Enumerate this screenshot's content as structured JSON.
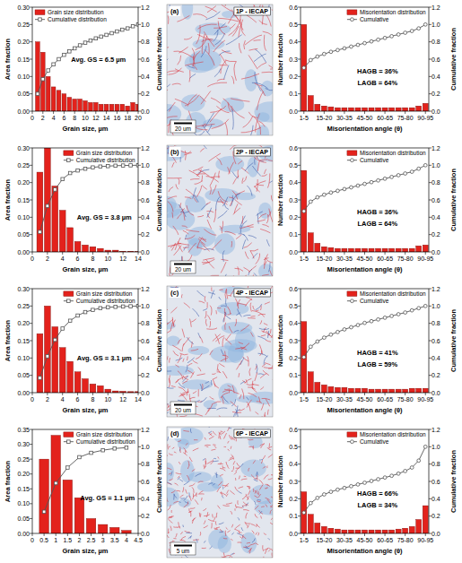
{
  "chart_data": [
    {
      "type": "bar",
      "xlabel": "Grain size, µm",
      "ylabel": "Area fraction",
      "y2label": "Cumulative fraction",
      "x": [
        1,
        2,
        3,
        4,
        5,
        6,
        7,
        8,
        9,
        10,
        11,
        12,
        13,
        14,
        15,
        16,
        17,
        18,
        19,
        20
      ],
      "xlim": [
        0,
        20
      ],
      "xticks": [
        0,
        2,
        4,
        6,
        8,
        10,
        12,
        14,
        16,
        18,
        20
      ],
      "ylim": [
        0,
        0.3
      ],
      "yticks": [
        {
          "value": 0,
          "label": "0.00"
        },
        0.05,
        {
          "value": 0.1,
          "label": "0.10"
        },
        0.15,
        {
          "value": 0.2,
          "label": "0.20"
        },
        0.25,
        {
          "value": 0.3,
          "label": "0.30"
        }
      ],
      "y2lim": [
        0,
        1.2
      ],
      "y2ticks": [
        {
          "value": 0,
          "label": "0.0"
        },
        0.2,
        0.4,
        0.6,
        0.8,
        {
          "value": 1,
          "label": "1.0"
        },
        1.2
      ],
      "series": [
        {
          "name": "Grain size distribution",
          "type": "bar",
          "color": "#e3221c",
          "values": [
            0.2,
            0.17,
            0.1,
            0.07,
            0.06,
            0.05,
            0.04,
            0.035,
            0.035,
            0.03,
            0.025,
            0.025,
            0.02,
            0.02,
            0.02,
            0.02,
            0.02,
            0.015,
            0.025,
            0.02
          ]
        },
        {
          "name": "Cumulative distribution",
          "type": "line",
          "axis": "y2",
          "color": "#555555",
          "marker": "square",
          "values": [
            0.2,
            0.37,
            0.47,
            0.54,
            0.6,
            0.65,
            0.69,
            0.725,
            0.76,
            0.79,
            0.815,
            0.84,
            0.86,
            0.88,
            0.9,
            0.92,
            0.94,
            0.955,
            0.98,
            1.0
          ]
        }
      ],
      "legend": "upper left",
      "annotations": [
        "Avg. GS = 6.5 µm"
      ]
    },
    {
      "type": "image",
      "title": "1P - IECAP",
      "annotations": [
        "(a)",
        "20 um"
      ]
    },
    {
      "type": "bar",
      "xlabel": "Misorientation angle (θ)",
      "ylabel": "Number fraction",
      "y2label": "Cumulative fraction",
      "categories": [
        "1-5",
        null,
        null,
        "15-20",
        null,
        null,
        "30-35",
        null,
        null,
        "45-50",
        null,
        null,
        "60-65",
        null,
        null,
        "75-80",
        null,
        null,
        "90-95"
      ],
      "ylim": [
        0,
        0.6
      ],
      "yticks": [
        {
          "value": 0,
          "label": "0.0"
        },
        0.1,
        0.2,
        0.3,
        0.4,
        0.5,
        0.6
      ],
      "y2lim": [
        0,
        1.2
      ],
      "y2ticks": [
        {
          "value": 0,
          "label": "0.0"
        },
        0.2,
        0.4,
        0.6,
        0.8,
        {
          "value": 1,
          "label": "1.0"
        },
        1.2
      ],
      "series": [
        {
          "name": "Misorientation distribution",
          "type": "bar",
          "color": "#e3221c",
          "values": [
            0.5,
            0.09,
            0.04,
            0.03,
            0.025,
            0.02,
            0.02,
            0.02,
            0.02,
            0.02,
            0.02,
            0.02,
            0.02,
            0.02,
            0.02,
            0.02,
            0.02,
            0.03,
            0.045
          ]
        },
        {
          "name": "Cumulative",
          "type": "line",
          "axis": "y2",
          "color": "#555555",
          "marker": "circle",
          "values": [
            0.5,
            0.59,
            0.63,
            0.66,
            0.685,
            0.705,
            0.725,
            0.745,
            0.765,
            0.785,
            0.805,
            0.825,
            0.845,
            0.865,
            0.885,
            0.905,
            0.925,
            0.955,
            1.0
          ]
        }
      ],
      "legend": "upper right",
      "annotations": [
        "HAGB = 36%",
        "LAGB = 64%"
      ]
    },
    {
      "type": "bar",
      "xlabel": "Grain size, µm",
      "ylabel": "Area fraction",
      "y2label": "Cumulative fraction",
      "x": [
        1,
        2,
        3,
        4,
        5,
        6,
        7,
        8,
        9,
        10,
        11,
        12,
        13,
        14
      ],
      "xlim": [
        0,
        14
      ],
      "xticks": [
        0,
        2,
        4,
        6,
        8,
        10,
        12,
        14
      ],
      "ylim": [
        0,
        0.3
      ],
      "yticks": [
        {
          "value": 0,
          "label": "0.00"
        },
        0.05,
        {
          "value": 0.1,
          "label": "0.10"
        },
        0.15,
        {
          "value": 0.2,
          "label": "0.20"
        },
        0.25,
        {
          "value": 0.3,
          "label": "0.30"
        }
      ],
      "y2lim": [
        0,
        1.2
      ],
      "y2ticks": [
        {
          "value": 0,
          "label": "0.0"
        },
        0.2,
        0.4,
        0.6,
        0.8,
        {
          "value": 1,
          "label": "1.0"
        },
        1.2
      ],
      "series": [
        {
          "name": "Grain size distribution",
          "type": "bar",
          "color": "#e3221c",
          "values": [
            0.23,
            0.3,
            0.19,
            0.12,
            0.07,
            0.03,
            0.02,
            0.015,
            0.01,
            0.005,
            0.005,
            0.002,
            0.002,
            0.001
          ]
        },
        {
          "name": "Cumulative distribution",
          "type": "line",
          "axis": "y2",
          "color": "#555555",
          "marker": "square",
          "values": [
            0.23,
            0.53,
            0.72,
            0.84,
            0.91,
            0.94,
            0.96,
            0.975,
            0.985,
            0.99,
            0.995,
            0.997,
            0.999,
            1.0
          ]
        }
      ],
      "legend": "upper right",
      "annotations": [
        "Avg. GS = 3.8 µm"
      ]
    },
    {
      "type": "image",
      "title": "2P - IECAP",
      "annotations": [
        "(b)",
        "20 um"
      ]
    },
    {
      "type": "bar",
      "xlabel": "Misorientation angle (θ)",
      "ylabel": "Number fraction",
      "y2label": "Cumulative fraction",
      "categories": [
        "1-5",
        null,
        null,
        "15-20",
        null,
        null,
        "30-35",
        null,
        null,
        "45-50",
        null,
        null,
        "60-65",
        null,
        null,
        "75-80",
        null,
        null,
        "90-95"
      ],
      "ylim": [
        0,
        0.6
      ],
      "yticks": [
        {
          "value": 0,
          "label": "0.0"
        },
        0.1,
        0.2,
        0.3,
        0.4,
        0.5,
        0.6
      ],
      "y2lim": [
        0,
        1.2
      ],
      "y2ticks": [
        {
          "value": 0,
          "label": "0.0"
        },
        0.2,
        0.4,
        0.6,
        0.8,
        {
          "value": 1,
          "label": "1.0"
        },
        1.2
      ],
      "series": [
        {
          "name": "Misorientation distribution",
          "type": "bar",
          "color": "#e3221c",
          "values": [
            0.47,
            0.11,
            0.05,
            0.03,
            0.025,
            0.02,
            0.02,
            0.02,
            0.02,
            0.02,
            0.02,
            0.02,
            0.02,
            0.02,
            0.02,
            0.02,
            0.02,
            0.035,
            0.04
          ]
        },
        {
          "name": "Cumulative",
          "type": "line",
          "axis": "y2",
          "color": "#555555",
          "marker": "circle",
          "values": [
            0.47,
            0.58,
            0.63,
            0.66,
            0.685,
            0.705,
            0.725,
            0.745,
            0.765,
            0.785,
            0.805,
            0.825,
            0.845,
            0.865,
            0.885,
            0.905,
            0.925,
            0.96,
            1.0
          ]
        }
      ],
      "legend": "upper right",
      "annotations": [
        "HAGB = 36%",
        "LAGB = 64%"
      ]
    },
    {
      "type": "bar",
      "xlabel": "Grain size, µm",
      "ylabel": "Area fraction",
      "y2label": "Cumulative fraction",
      "x": [
        1,
        2,
        3,
        4,
        5,
        6,
        7,
        8,
        9,
        10,
        11,
        12,
        13,
        14
      ],
      "xlim": [
        0,
        14
      ],
      "xticks": [
        0,
        2,
        4,
        6,
        8,
        10,
        12,
        14
      ],
      "ylim": [
        0,
        0.3
      ],
      "yticks": [
        {
          "value": 0,
          "label": "0.00"
        },
        0.05,
        {
          "value": 0.1,
          "label": "0.10"
        },
        0.15,
        {
          "value": 0.2,
          "label": "0.20"
        },
        0.25,
        {
          "value": 0.3,
          "label": "0.30"
        }
      ],
      "y2lim": [
        0,
        1.2
      ],
      "y2ticks": [
        {
          "value": 0,
          "label": "0.0"
        },
        0.2,
        0.4,
        0.6,
        0.8,
        {
          "value": 1,
          "label": "1.0"
        },
        1.2
      ],
      "series": [
        {
          "name": "Grain size distribution",
          "type": "bar",
          "color": "#e3221c",
          "values": [
            0.17,
            0.25,
            0.19,
            0.13,
            0.09,
            0.06,
            0.04,
            0.025,
            0.02,
            0.01,
            0.005,
            0.004,
            0.003,
            0.003
          ]
        },
        {
          "name": "Cumulative distribution",
          "type": "line",
          "axis": "y2",
          "color": "#555555",
          "marker": "square",
          "values": [
            0.17,
            0.42,
            0.61,
            0.74,
            0.83,
            0.89,
            0.93,
            0.955,
            0.975,
            0.985,
            0.99,
            0.994,
            0.997,
            1.0
          ]
        }
      ],
      "legend": "upper right",
      "annotations": [
        "Avg. GS = 3.1 µm"
      ]
    },
    {
      "type": "image",
      "title": "4P - IECAP",
      "annotations": [
        "(c)",
        "20 um"
      ]
    },
    {
      "type": "bar",
      "xlabel": "Misorientation angle (θ)",
      "ylabel": "Number fraction",
      "y2label": "Cumulative fraction",
      "categories": [
        "1-5",
        null,
        null,
        "15-20",
        null,
        null,
        "30-35",
        null,
        null,
        "45-50",
        null,
        null,
        "60-65",
        null,
        null,
        "75-80",
        null,
        null,
        "90-95"
      ],
      "ylim": [
        0,
        0.6
      ],
      "yticks": [
        {
          "value": 0,
          "label": "0.0"
        },
        0.1,
        0.2,
        0.3,
        0.4,
        0.5,
        0.6
      ],
      "y2lim": [
        0,
        1.2
      ],
      "y2ticks": [
        {
          "value": 0,
          "label": "0.0"
        },
        0.2,
        0.4,
        0.6,
        0.8,
        {
          "value": 1,
          "label": "1.0"
        },
        1.2
      ],
      "series": [
        {
          "name": "Misorientation distribution",
          "type": "bar",
          "color": "#e3221c",
          "values": [
            0.41,
            0.12,
            0.06,
            0.045,
            0.035,
            0.03,
            0.03,
            0.025,
            0.025,
            0.025,
            0.02,
            0.02,
            0.02,
            0.02,
            0.02,
            0.02,
            0.025,
            0.025,
            0.025
          ]
        },
        {
          "name": "Cumulative",
          "type": "line",
          "axis": "y2",
          "color": "#555555",
          "marker": "circle",
          "values": [
            0.41,
            0.53,
            0.59,
            0.635,
            0.67,
            0.7,
            0.73,
            0.755,
            0.78,
            0.805,
            0.825,
            0.845,
            0.865,
            0.885,
            0.905,
            0.925,
            0.95,
            0.975,
            1.0
          ]
        }
      ],
      "legend": "upper right",
      "annotations": [
        "HAGB = 41%",
        "LAGB = 59%"
      ]
    },
    {
      "type": "bar",
      "xlabel": "Grain size, µm",
      "ylabel": "Area fraction",
      "y2label": "Cumulative fraction",
      "x": [
        0.5,
        1,
        1.5,
        2,
        2.5,
        3,
        3.5,
        4
      ],
      "xlim": [
        0,
        4.5
      ],
      "xticks": [
        0,
        0.5,
        1,
        1.5,
        2,
        2.5,
        3,
        3.5,
        4,
        4.5
      ],
      "ylim": [
        0,
        0.35
      ],
      "yticks": [
        {
          "value": 0,
          "label": "0.00"
        },
        0.05,
        {
          "value": 0.1,
          "label": "0.10"
        },
        0.15,
        {
          "value": 0.2,
          "label": "0.20"
        },
        0.25,
        {
          "value": 0.3,
          "label": "0.30"
        },
        0.35
      ],
      "y2lim": [
        0,
        1.2
      ],
      "y2ticks": [
        {
          "value": 0,
          "label": "0.0"
        },
        0.2,
        0.4,
        0.6,
        0.8,
        {
          "value": 1,
          "label": "1.0"
        },
        1.2
      ],
      "series": [
        {
          "name": "Grain size distribution",
          "type": "bar",
          "color": "#e3221c",
          "values": [
            0.25,
            0.33,
            0.18,
            0.12,
            0.05,
            0.03,
            0.02,
            0.01
          ]
        },
        {
          "name": "Cumulative distribution",
          "type": "line",
          "axis": "y2",
          "color": "#555555",
          "marker": "square",
          "values": [
            0.25,
            0.58,
            0.76,
            0.88,
            0.93,
            0.96,
            0.98,
            0.99
          ]
        }
      ],
      "legend": "upper right",
      "annotations": [
        "Avg. GS = 1.1 µm"
      ]
    },
    {
      "type": "image",
      "title": "6P - IECAP",
      "annotations": [
        "(d)",
        "5 um"
      ]
    },
    {
      "type": "bar",
      "xlabel": "Misorientation angle (θ)",
      "ylabel": "Number fraction",
      "y2label": "Cumulative fraction",
      "categories": [
        "1-5",
        null,
        null,
        "15-20",
        null,
        null,
        "30-35",
        null,
        null,
        "45-50",
        null,
        null,
        "60-65",
        null,
        null,
        "75-80",
        null,
        null,
        "90-95"
      ],
      "ylim": [
        0,
        0.6
      ],
      "yticks": [
        {
          "value": 0,
          "label": "0.0"
        },
        0.1,
        0.2,
        0.3,
        0.4,
        0.5,
        0.6
      ],
      "y2lim": [
        0,
        1.2
      ],
      "y2ticks": [
        {
          "value": 0,
          "label": "0.0"
        },
        0.2,
        0.4,
        0.6,
        0.8,
        {
          "value": 1,
          "label": "1.0"
        },
        1.2
      ],
      "series": [
        {
          "name": "Misorientation distribution",
          "type": "bar",
          "color": "#e3221c",
          "values": [
            0.24,
            0.11,
            0.06,
            0.04,
            0.03,
            0.025,
            0.02,
            0.02,
            0.02,
            0.02,
            0.02,
            0.02,
            0.02,
            0.02,
            0.025,
            0.03,
            0.04,
            0.08,
            0.16
          ]
        },
        {
          "name": "Cumulative",
          "type": "line",
          "axis": "y2",
          "color": "#555555",
          "marker": "circle",
          "values": [
            0.24,
            0.35,
            0.41,
            0.45,
            0.48,
            0.505,
            0.525,
            0.545,
            0.565,
            0.585,
            0.605,
            0.625,
            0.645,
            0.665,
            0.69,
            0.72,
            0.76,
            0.84,
            1.0
          ]
        }
      ],
      "legend": "upper right",
      "annotations": [
        "HAGB = 66%",
        "LAGB = 34%"
      ]
    }
  ]
}
